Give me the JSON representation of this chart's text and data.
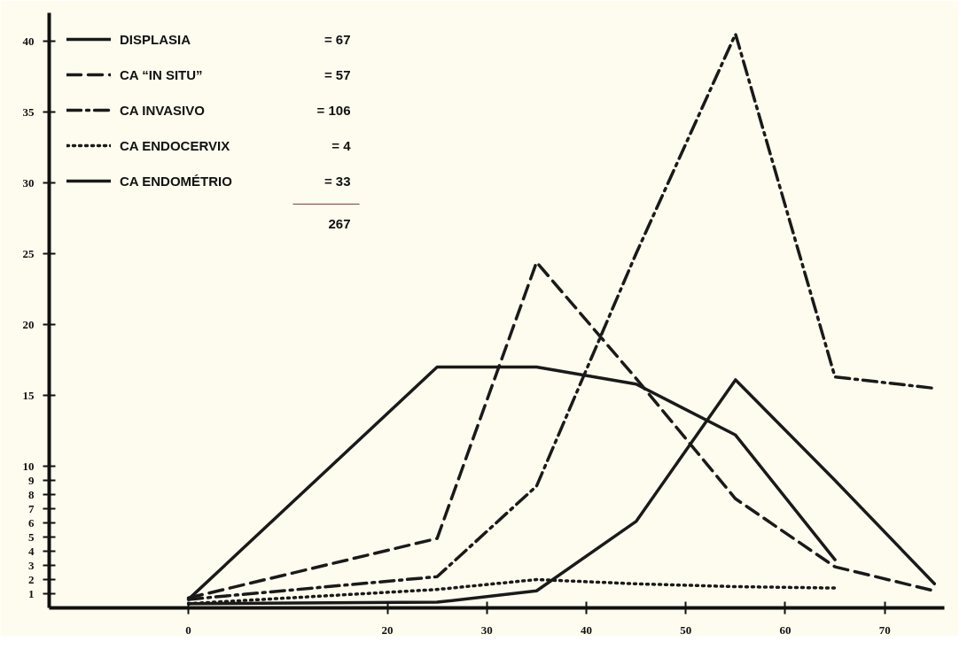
{
  "chart_data": {
    "type": "line",
    "x": [
      0,
      25,
      35,
      45,
      55,
      65,
      75
    ],
    "series": [
      {
        "name": "DISPLASIA",
        "color": "#1a1a1a",
        "line_style": "solid",
        "values": [
          0.6,
          17,
          17,
          15.8,
          12.2,
          3.4,
          null
        ]
      },
      {
        "name": "CA “IN SITU”",
        "color": "#1a1a1a",
        "line_style": "dashed",
        "values": [
          0.7,
          4.9,
          24.4,
          16.2,
          7.7,
          2.9,
          1.2
        ]
      },
      {
        "name": "CA INVASIVO",
        "color": "#1a1a1a",
        "line_style": "dashdot",
        "values": [
          0.6,
          2.2,
          8.6,
          25,
          40.5,
          16.3,
          15.5
        ]
      },
      {
        "name": "CA ENDOCERVIX",
        "color": "#1a1a1a",
        "line_style": "dotted",
        "values": [
          0.3,
          1.3,
          2.0,
          1.7,
          1.5,
          1.4,
          null
        ]
      },
      {
        "name": "CA ENDOMÉTRIO",
        "color": "#1a1a1a",
        "line_style": "solid",
        "values": [
          0.3,
          0.4,
          1.2,
          6.1,
          16.1,
          9,
          1.7
        ]
      }
    ],
    "xlim": [
      -14,
      76
    ],
    "xticks": [
      0,
      20,
      30,
      40,
      50,
      60,
      70
    ],
    "ylim": [
      0,
      42
    ],
    "yticks": [
      1,
      2,
      3,
      4,
      5,
      6,
      7,
      8,
      9,
      10,
      15,
      20,
      25,
      30,
      35,
      40
    ],
    "annotations": [
      "= 67",
      "= 57",
      "= 106",
      "= 4",
      "= 33",
      "267"
    ],
    "legend": "top left",
    "grid": false,
    "marker": "none"
  }
}
